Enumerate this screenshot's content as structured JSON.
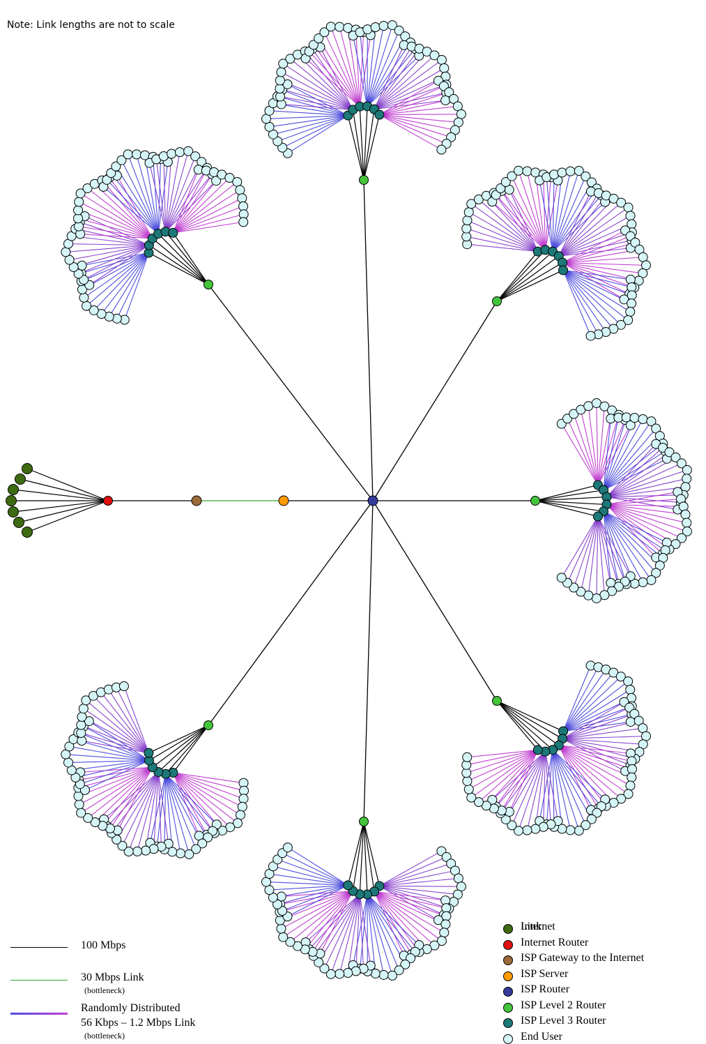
{
  "note": "Note: Link lengths are not to scale",
  "colors": {
    "internet": "#3e6b12",
    "internet_router": "#e01010",
    "gateway": "#9a6a3a",
    "server": "#ff9a00",
    "isp_router": "#343b9a",
    "level2": "#44c43a",
    "level3": "#1d7878",
    "end_user": "#d6f5f7",
    "link_100": "#000000",
    "link_30": "#2ea82e",
    "link_blue": "#4d4ddd",
    "link_purple": "#8844cc",
    "link_magenta": "#c040d0"
  },
  "link_legend": [
    {
      "label": "100 Mbps",
      "sub": ""
    },
    {
      "label": "30 Mbps Link",
      "sub": "(bottleneck)"
    },
    {
      "label": "Randomly Distributed",
      "label2": "56 Kbps – 1.2 Mbps Link",
      "sub": "(bottleneck)"
    }
  ],
  "node_legend": [
    {
      "label": "Internet",
      "overprint": "Link"
    },
    {
      "label": "Internet Router"
    },
    {
      "label": "ISP Gateway to the Internet"
    },
    {
      "label": "ISP Server"
    },
    {
      "label": "ISP Router"
    },
    {
      "label": "ISP Level 2 Router"
    },
    {
      "label": "ISP Level 3 Router"
    },
    {
      "label": "End User"
    }
  ]
}
